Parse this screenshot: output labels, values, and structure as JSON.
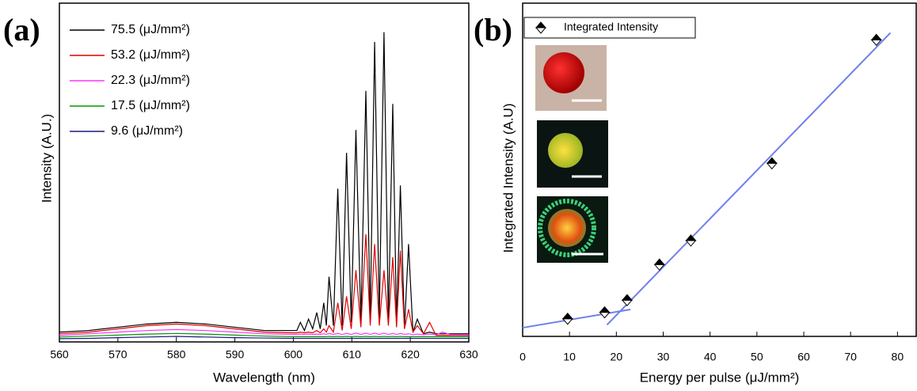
{
  "chart_data": [
    {
      "type": "line",
      "panel_label": "(a)",
      "x_label": "Wavelength (nm)",
      "y_label": "Intensity (A.U.)",
      "xlim": [
        560,
        630
      ],
      "xticks": [
        560,
        570,
        580,
        590,
        600,
        610,
        620,
        630
      ],
      "ylim": [
        0,
        100
      ],
      "x": [
        560,
        565,
        570,
        575,
        580,
        585,
        590,
        595,
        600,
        600.6,
        601.2,
        601.9,
        602.6,
        603.3,
        604.0,
        604.6,
        605.2,
        605.65,
        606.1,
        606.85,
        607.6,
        608.35,
        609.1,
        609.9,
        610.7,
        611.55,
        612.4,
        613.15,
        613.9,
        614.7,
        615.5,
        616.25,
        617.0,
        617.65,
        618.3,
        619.0,
        619.7,
        620.45,
        621.2,
        622.25,
        623.3,
        624.4,
        625.5,
        627,
        630
      ],
      "series": [
        {
          "name": "75.5 (μJ/mm²)",
          "color": "#000000",
          "values": [
            3,
            3.5,
            4.5,
            5.5,
            6,
            5.5,
            4.5,
            3.5,
            3.5,
            3.5,
            6,
            3.5,
            7,
            4,
            9,
            4,
            12,
            5,
            20,
            5,
            47,
            5,
            58,
            6,
            65,
            6,
            77,
            7,
            92,
            7,
            95,
            6,
            73,
            5,
            48,
            4,
            30,
            3,
            7,
            2.5,
            3,
            2.5,
            2.5,
            2.5,
            2.5
          ]
        },
        {
          "name": "53.2 (μJ/mm²)",
          "color": "#e00000",
          "values": [
            2.5,
            3,
            4,
            5,
            5.5,
            5,
            4,
            3,
            2.8,
            2.8,
            3,
            2.8,
            3,
            2.8,
            3.5,
            2.8,
            4,
            3,
            5,
            3,
            12,
            3.5,
            14,
            4,
            22,
            4.5,
            33,
            5,
            30,
            5,
            22,
            5,
            26,
            4.5,
            28,
            4,
            10,
            3,
            5,
            2.5,
            6,
            2,
            2,
            2,
            2
          ]
        },
        {
          "name": "22.3 (μJ/mm²)",
          "color": "#ff33ff",
          "values": [
            2,
            2.5,
            3,
            3.5,
            3.8,
            3.5,
            3,
            2.5,
            2.3,
            2.3,
            2.4,
            2.3,
            2.4,
            2.3,
            2.4,
            2.3,
            2.5,
            2.3,
            2.6,
            2.3,
            2.6,
            2.3,
            2.6,
            2.3,
            2.7,
            2.3,
            2.7,
            2.3,
            2.7,
            2.3,
            2.7,
            2.3,
            2.6,
            2.3,
            2.6,
            2.3,
            2.5,
            2.2,
            2.4,
            2.2,
            2.4,
            2.2,
            3,
            2.2,
            2.2
          ]
        },
        {
          "name": "17.5 (μJ/mm²)",
          "color": "#009900",
          "values": [
            1.5,
            1.8,
            2.1,
            2.4,
            2.6,
            2.4,
            2.1,
            1.8,
            1.6,
            1.6,
            1.6,
            1.6,
            1.6,
            1.6,
            1.6,
            1.6,
            1.6,
            1.6,
            1.7,
            1.6,
            1.7,
            1.6,
            1.7,
            1.6,
            1.7,
            1.6,
            1.7,
            1.6,
            1.7,
            1.6,
            1.7,
            1.6,
            1.7,
            1.6,
            1.7,
            1.6,
            1.6,
            1.6,
            1.6,
            1.6,
            1.6,
            1.6,
            1.6,
            1.6,
            1.6
          ]
        },
        {
          "name": "9.6 (μJ/mm²)",
          "color": "#1a1a80",
          "values": [
            1,
            1.1,
            1.3,
            1.5,
            1.7,
            1.5,
            1.3,
            1.2,
            1.1,
            1.1,
            1.1,
            1.1,
            1.1,
            1.1,
            1.1,
            1.1,
            1.1,
            1.1,
            1.1,
            1.1,
            1.1,
            1.1,
            1.1,
            1.1,
            1.1,
            1.1,
            1.1,
            1.1,
            1.1,
            1.1,
            1.1,
            1.1,
            1.1,
            1.1,
            1.1,
            1.1,
            1.1,
            1.1,
            1.1,
            1.1,
            1.1,
            1.1,
            1.1,
            1.1,
            1.1
          ]
        }
      ]
    },
    {
      "type": "scatter",
      "panel_label": "(b)",
      "x_label": "Energy per pulse (μJ/mm²)",
      "y_label": "Integrated Intensity (A.U)",
      "xlim": [
        0,
        84
      ],
      "xticks": [
        0,
        10,
        20,
        30,
        40,
        50,
        60,
        70,
        80
      ],
      "ylim": [
        0,
        100
      ],
      "series": [
        {
          "name": "Integrated Intensity",
          "color": "#000000",
          "x": [
            9.6,
            17.5,
            22.3,
            29.2,
            35.9,
            53.2,
            75.5
          ],
          "values": [
            5.5,
            7.5,
            11.3,
            22.4,
            29.9,
            54,
            92.5
          ]
        }
      ],
      "fit_lines": [
        {
          "color": "#6f7fe8",
          "x": [
            0,
            23
          ],
          "values": [
            2.7,
            8.4
          ]
        },
        {
          "color": "#6f7fe8",
          "x": [
            18,
            78.5
          ],
          "values": [
            3.6,
            94.7
          ]
        }
      ]
    }
  ]
}
